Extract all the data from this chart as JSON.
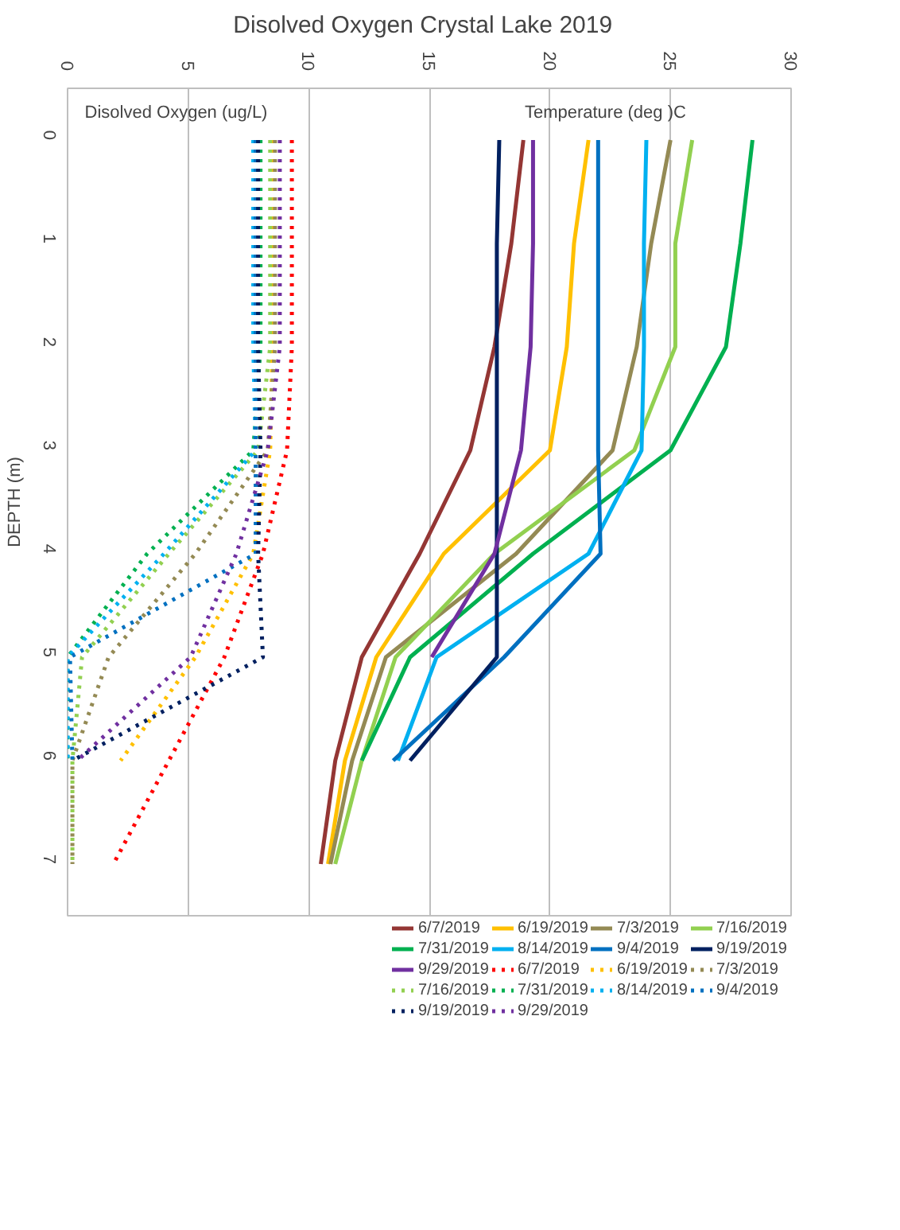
{
  "chart_data": {
    "type": "line",
    "title": "Disolved Oxygen  Crystal Lake  2019",
    "ylabel": "DEPTH (m)",
    "annotations": [
      "Disolved Oxygen (ug/L)",
      "Temperature   (deg )C"
    ],
    "xlim": [
      0,
      30
    ],
    "xticks": [
      0,
      5,
      10,
      15,
      20,
      25,
      30
    ],
    "ylim": [
      7.5,
      -0.5
    ],
    "yticks": [
      0,
      1,
      2,
      3,
      4,
      5,
      6,
      7
    ],
    "grid": "x",
    "legend": "bottom",
    "marker": "none",
    "series": [
      {
        "name": "6/7/2019",
        "color": "#943634",
        "line_style": "solid",
        "x": [
          18.9,
          18.4,
          17.7,
          16.7,
          14.6,
          12.2,
          11.1,
          10.5
        ],
        "values": [
          0,
          1,
          2,
          3,
          4,
          5,
          6,
          7
        ]
      },
      {
        "name": "6/19/2019",
        "color": "#ffc000",
        "line_style": "solid",
        "x": [
          21.6,
          21.0,
          20.7,
          20.0,
          15.6,
          12.8,
          11.5,
          10.8
        ],
        "values": [
          0,
          1,
          2,
          3,
          4,
          5,
          6,
          7
        ]
      },
      {
        "name": "7/3/2019",
        "color": "#948a54",
        "line_style": "solid",
        "x": [
          25.0,
          24.2,
          23.6,
          22.6,
          18.6,
          13.2,
          11.8,
          10.9
        ],
        "values": [
          0,
          1,
          2,
          3,
          4,
          5,
          6,
          7
        ]
      },
      {
        "name": "7/16/2019",
        "color": "#92d050",
        "line_style": "solid",
        "x": [
          25.9,
          25.2,
          25.2,
          23.5,
          17.7,
          13.6,
          12.2,
          11.1
        ],
        "values": [
          0,
          1,
          2,
          3,
          4,
          5,
          6,
          7
        ]
      },
      {
        "name": "7/31/2019",
        "color": "#00b050",
        "line_style": "solid",
        "x": [
          28.4,
          27.9,
          27.3,
          25.0,
          19.3,
          14.2,
          12.2
        ],
        "values": [
          0,
          1,
          2,
          3,
          4,
          5,
          6
        ]
      },
      {
        "name": "8/14/2019",
        "color": "#00b0f0",
        "line_style": "solid",
        "x": [
          24.0,
          23.9,
          23.9,
          23.8,
          21.6,
          15.3,
          13.7
        ],
        "values": [
          0,
          1,
          2,
          3,
          4,
          5,
          6
        ]
      },
      {
        "name": "9/4/2019",
        "color": "#0070c0",
        "line_style": "solid",
        "x": [
          22.0,
          22.0,
          22.0,
          22.0,
          22.1,
          18.1,
          13.5
        ],
        "values": [
          0,
          1,
          2,
          3,
          4,
          5,
          6
        ]
      },
      {
        "name": "9/19/2019",
        "color": "#002060",
        "line_style": "solid",
        "x": [
          17.9,
          17.8,
          17.8,
          17.8,
          17.8,
          17.8,
          14.2
        ],
        "values": [
          0,
          1,
          2,
          3,
          4,
          5,
          6
        ]
      },
      {
        "name": "9/29/2019",
        "color": "#7030a0",
        "line_style": "solid",
        "x": [
          19.3,
          19.3,
          19.2,
          18.8,
          17.7,
          15.1
        ],
        "values": [
          0,
          1,
          2,
          3,
          4,
          5
        ]
      },
      {
        "name": "6/7/2019",
        "color": "#ff0000",
        "line_style": "dotted",
        "x": [
          9.3,
          9.3,
          9.3,
          9.1,
          8.1,
          6.5,
          4.2,
          1.9
        ],
        "values": [
          0,
          1,
          2,
          3,
          4,
          5,
          6,
          7
        ]
      },
      {
        "name": "6/19/2019",
        "color": "#ffc000",
        "line_style": "dotted",
        "x": [
          8.5,
          8.5,
          8.5,
          8.4,
          7.7,
          5.3,
          2.2
        ],
        "values": [
          0,
          1,
          2,
          3,
          4,
          5,
          6
        ]
      },
      {
        "name": "7/3/2019",
        "color": "#948a54",
        "line_style": "dotted",
        "x": [
          8.6,
          8.6,
          8.6,
          8.3,
          5.3,
          1.7,
          0.2,
          0.2
        ],
        "values": [
          0,
          1,
          2,
          3,
          4,
          5,
          6,
          7
        ]
      },
      {
        "name": "7/16/2019",
        "color": "#92d050",
        "line_style": "dotted",
        "x": [
          8.4,
          8.4,
          8.4,
          7.9,
          4.2,
          0.6,
          0.2,
          0.2
        ],
        "values": [
          0,
          1,
          2,
          3,
          4,
          5,
          6,
          7
        ]
      },
      {
        "name": "7/31/2019",
        "color": "#00b050",
        "line_style": "dotted",
        "x": [
          8.0,
          8.0,
          8.0,
          7.7,
          3.3,
          0.0,
          0.0
        ],
        "values": [
          0,
          1,
          2,
          3,
          4,
          5,
          6
        ]
      },
      {
        "name": "8/14/2019",
        "color": "#00b0f0",
        "line_style": "dotted",
        "x": [
          7.7,
          7.7,
          7.7,
          7.8,
          4.0,
          0.0,
          0.0
        ],
        "values": [
          0,
          1,
          2,
          3,
          4,
          5,
          6
        ]
      },
      {
        "name": "9/4/2019",
        "color": "#0070c0",
        "line_style": "dotted",
        "x": [
          7.8,
          7.8,
          7.8,
          7.8,
          7.8,
          0.1,
          0.2
        ],
        "values": [
          0,
          1,
          2,
          3,
          4,
          5,
          6
        ]
      },
      {
        "name": "9/19/2019",
        "color": "#002060",
        "line_style": "dotted",
        "x": [
          7.9,
          7.9,
          7.9,
          8.0,
          7.9,
          8.1,
          0.2
        ],
        "values": [
          0,
          1,
          2,
          3,
          4,
          5,
          6
        ]
      },
      {
        "name": "9/29/2019",
        "color": "#7030a0",
        "line_style": "dotted",
        "x": [
          8.8,
          8.8,
          8.8,
          8.3,
          7.0,
          5.1,
          0.4
        ],
        "values": [
          0,
          1,
          2,
          3,
          4,
          5,
          6
        ]
      }
    ]
  }
}
